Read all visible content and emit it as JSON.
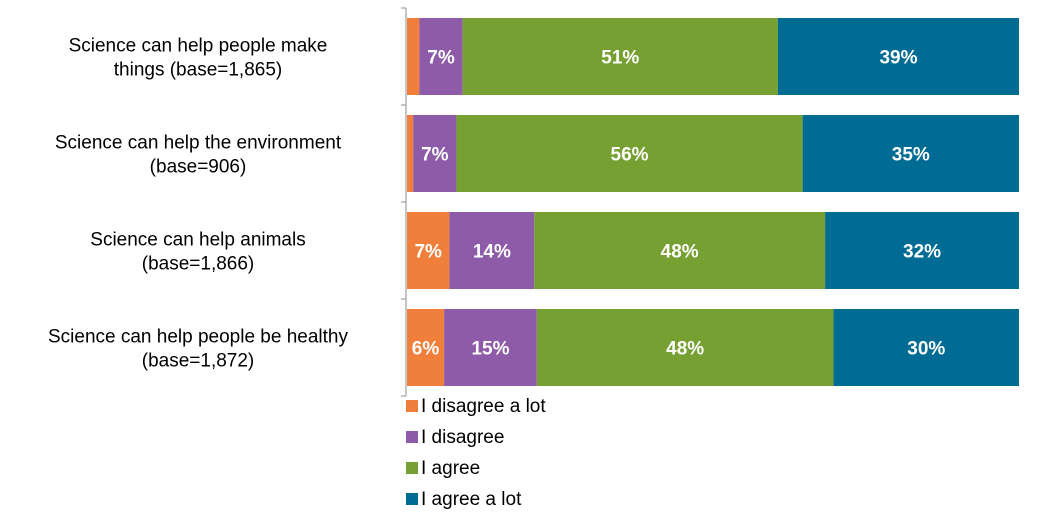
{
  "chart_data": {
    "type": "bar",
    "orientation": "horizontal",
    "stacked": true,
    "percent_stacked": true,
    "categories": [
      [
        "Science can help people make",
        "things (base=1,865)"
      ],
      [
        "Science can help the environment",
        "(base=906)"
      ],
      [
        "Science can help animals",
        "(base=1,866)"
      ],
      [
        "Science can help people be healthy",
        "(base=1,872)"
      ]
    ],
    "series": [
      {
        "name": "I disagree a lot",
        "color": "#F07F3C",
        "values": [
          2,
          1,
          7,
          6
        ],
        "labels": [
          "",
          "",
          "7%",
          "6%"
        ]
      },
      {
        "name": "I disagree",
        "color": "#8E5BA9",
        "values": [
          7,
          7,
          14,
          15
        ],
        "labels": [
          "7%",
          "7%",
          "14%",
          "15%"
        ]
      },
      {
        "name": "I agree",
        "color": "#77A033",
        "values": [
          51,
          56,
          48,
          48
        ],
        "labels": [
          "51%",
          "56%",
          "48%",
          "48%"
        ]
      },
      {
        "name": "I agree a lot",
        "color": "#006B93",
        "values": [
          39,
          35,
          32,
          30
        ],
        "labels": [
          "39%",
          "35%",
          "32%",
          "30%"
        ]
      }
    ],
    "grid": false,
    "legend_position": "bottom-left"
  }
}
